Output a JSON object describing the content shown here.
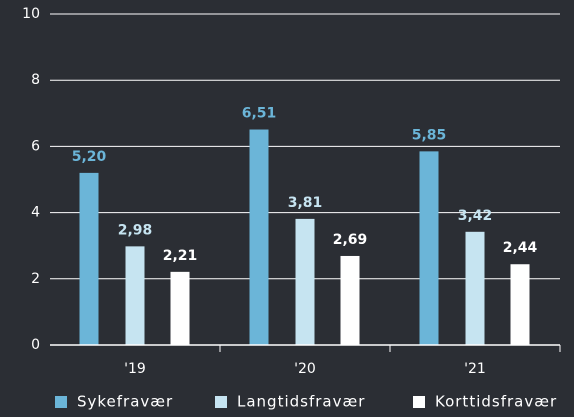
{
  "chart_data": {
    "type": "bar",
    "categories": [
      "'19",
      "'20",
      "'21"
    ],
    "series": [
      {
        "name": "Sykefravær",
        "color": "#6bb5d8",
        "values": [
          5.2,
          6.51,
          5.85
        ],
        "value_labels": [
          "5,20",
          "6,51",
          "5,85"
        ]
      },
      {
        "name": "Langtidsfravær",
        "color": "#c6e4f1",
        "values": [
          2.98,
          3.81,
          3.42
        ],
        "value_labels": [
          "2,98",
          "3,81",
          "3,42"
        ]
      },
      {
        "name": "Korttidsfravær",
        "color": "#ffffff",
        "values": [
          2.21,
          2.69,
          2.44
        ],
        "value_labels": [
          "2,21",
          "2,69",
          "2,44"
        ]
      }
    ],
    "ylim": [
      0,
      10
    ],
    "yticks": [
      0,
      2,
      4,
      6,
      8,
      10
    ],
    "grid": true
  }
}
